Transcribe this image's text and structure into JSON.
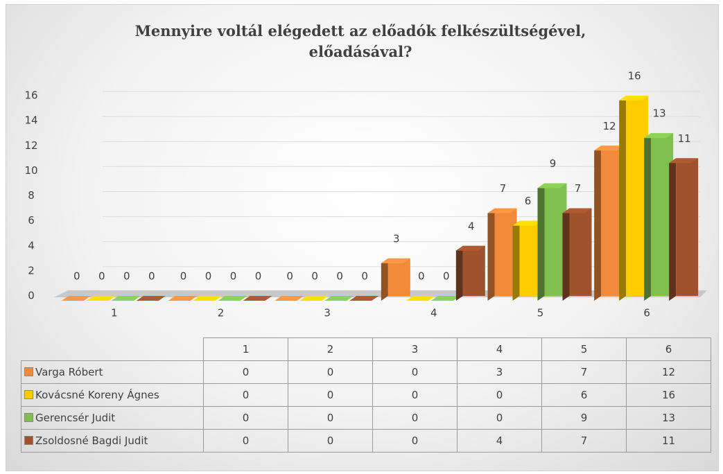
{
  "chart_data": {
    "type": "bar",
    "title": "Mennyire voltál elégedett az előadók felkészültségével, előadásával?",
    "categories": [
      "1",
      "2",
      "3",
      "4",
      "5",
      "6"
    ],
    "series": [
      {
        "name": "Varga Róbert",
        "color": "#f28a3c",
        "values": [
          0,
          0,
          0,
          3,
          7,
          12
        ]
      },
      {
        "name": "Kovácsné Koreny Ágnes",
        "color": "#ffcc00",
        "values": [
          0,
          0,
          0,
          0,
          6,
          16
        ]
      },
      {
        "name": "Gerencsér Judit",
        "color": "#7fc050",
        "values": [
          0,
          0,
          0,
          0,
          9,
          13
        ]
      },
      {
        "name": "Zsoldosné Bagdi Judit",
        "color": "#a0522d",
        "values": [
          0,
          0,
          0,
          4,
          7,
          11
        ]
      }
    ],
    "ylim": [
      0,
      16
    ],
    "yticks": [
      0,
      2,
      4,
      6,
      8,
      10,
      12,
      14,
      16
    ],
    "grid": true
  }
}
